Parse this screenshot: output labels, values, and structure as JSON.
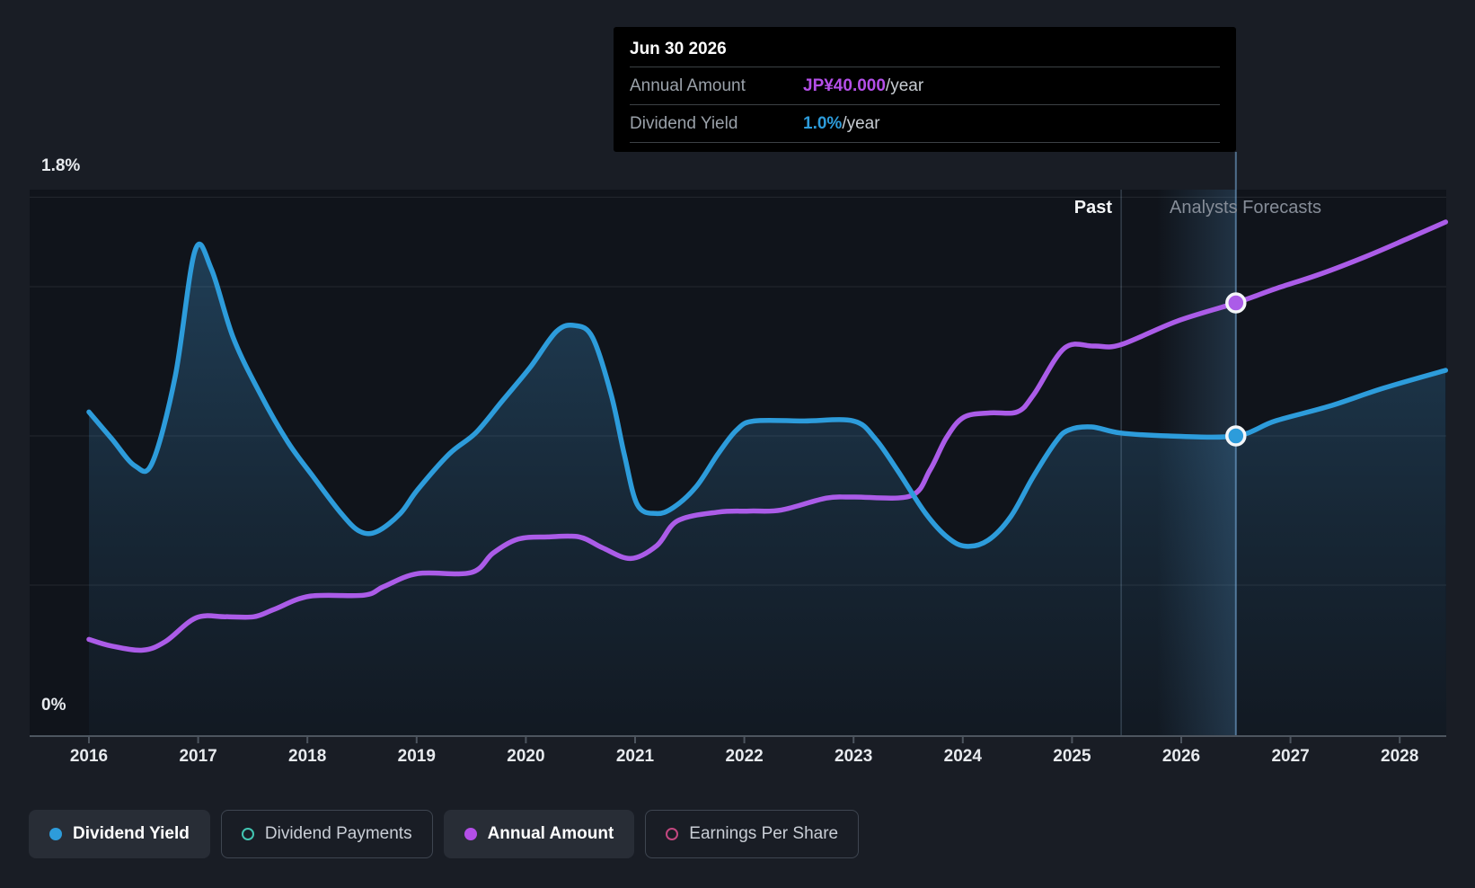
{
  "tooltip": {
    "date": "Jun 30 2026",
    "rows": [
      {
        "label": "Annual Amount",
        "value": "JP¥40.000",
        "suffix": "/year",
        "color": "#b44fe8"
      },
      {
        "label": "Dividend Yield",
        "value": "1.0%",
        "suffix": "/year",
        "color": "#2d9cdb"
      }
    ]
  },
  "regions": {
    "past_label": "Past",
    "forecast_label": "Analysts Forecasts"
  },
  "axis": {
    "y_top_label": "1.8%",
    "y_bottom_label": "0%",
    "x_ticks": [
      "2016",
      "2017",
      "2018",
      "2019",
      "2020",
      "2021",
      "2022",
      "2023",
      "2024",
      "2025",
      "2026",
      "2027",
      "2028"
    ]
  },
  "legend": [
    {
      "label": "Dividend Yield",
      "color": "#2d9cdb",
      "style": "filled",
      "active": true
    },
    {
      "label": "Dividend Payments",
      "color": "#42c5b2",
      "style": "ring",
      "active": false
    },
    {
      "label": "Annual Amount",
      "color": "#b44fe8",
      "style": "filled",
      "active": true
    },
    {
      "label": "Earnings Per Share",
      "color": "#c2477f",
      "style": "ring",
      "active": false
    }
  ],
  "colors": {
    "background": "#191d25",
    "plot_background": "#10141b",
    "gridline": "rgba(255,255,255,0.09)",
    "axis_line": "#4d555f",
    "yield_line": "#2d9cdb",
    "amount_line": "#ab5ce8",
    "area_fill_top": "rgba(64,150,210,0.32)",
    "area_fill_bottom": "rgba(64,150,210,0.04)",
    "hover_line": "rgba(125,178,226,0.55)",
    "divider_line": "rgba(150,182,212,0.25)",
    "band_highlight": "rgba(92,160,215,0.22)",
    "tooltip_background": "#000000"
  },
  "chart_data": {
    "type": "line",
    "title": "Dividend yield history and forecast",
    "grid_values_percent": [
      1.8,
      1.5,
      1.0,
      0.5
    ],
    "ylim_percent": [
      0,
      1.8
    ],
    "x_range": [
      2016,
      2028.42
    ],
    "past_until": 2025.45,
    "hover": {
      "x": 2026.5,
      "date": "Jun 30 2026",
      "yield_percent": 1.0,
      "amount_jpy": 40.0
    },
    "series": [
      {
        "name": "Dividend Yield",
        "unit": "%",
        "color": "#2d9cdb",
        "points": [
          [
            2016.0,
            1.08
          ],
          [
            2016.21,
            0.99
          ],
          [
            2016.42,
            0.9
          ],
          [
            2016.58,
            0.91
          ],
          [
            2016.79,
            1.2
          ],
          [
            2016.97,
            1.62
          ],
          [
            2017.12,
            1.56
          ],
          [
            2017.32,
            1.33
          ],
          [
            2017.57,
            1.14
          ],
          [
            2017.82,
            0.98
          ],
          [
            2018.06,
            0.86
          ],
          [
            2018.31,
            0.74
          ],
          [
            2018.48,
            0.68
          ],
          [
            2018.64,
            0.68
          ],
          [
            2018.85,
            0.74
          ],
          [
            2019.01,
            0.82
          ],
          [
            2019.3,
            0.94
          ],
          [
            2019.54,
            1.01
          ],
          [
            2019.79,
            1.12
          ],
          [
            2020.04,
            1.23
          ],
          [
            2020.28,
            1.35
          ],
          [
            2020.45,
            1.37
          ],
          [
            2020.61,
            1.33
          ],
          [
            2020.78,
            1.14
          ],
          [
            2020.9,
            0.94
          ],
          [
            2021.02,
            0.77
          ],
          [
            2021.19,
            0.74
          ],
          [
            2021.35,
            0.76
          ],
          [
            2021.56,
            0.83
          ],
          [
            2021.76,
            0.94
          ],
          [
            2021.93,
            1.02
          ],
          [
            2022.09,
            1.05
          ],
          [
            2022.55,
            1.05
          ],
          [
            2023.0,
            1.05
          ],
          [
            2023.2,
            0.99
          ],
          [
            2023.41,
            0.88
          ],
          [
            2023.66,
            0.74
          ],
          [
            2023.86,
            0.66
          ],
          [
            2024.03,
            0.63
          ],
          [
            2024.23,
            0.65
          ],
          [
            2024.44,
            0.73
          ],
          [
            2024.64,
            0.86
          ],
          [
            2024.85,
            0.98
          ],
          [
            2024.97,
            1.02
          ],
          [
            2025.18,
            1.03
          ],
          [
            2025.44,
            1.01
          ],
          [
            2025.88,
            1.0
          ],
          [
            2026.5,
            1.0
          ],
          [
            2026.86,
            1.05
          ],
          [
            2027.36,
            1.1
          ],
          [
            2027.85,
            1.16
          ],
          [
            2028.42,
            1.22
          ]
        ]
      },
      {
        "name": "Annual Amount",
        "unit": "JP¥/year",
        "color": "#ab5ce8",
        "points": [
          [
            2016.0,
            8.8
          ],
          [
            2016.2,
            8.2
          ],
          [
            2016.49,
            7.8
          ],
          [
            2016.7,
            8.6
          ],
          [
            2016.98,
            10.8
          ],
          [
            2017.25,
            10.9
          ],
          [
            2017.51,
            10.9
          ],
          [
            2017.7,
            11.6
          ],
          [
            2018.02,
            12.8
          ],
          [
            2018.52,
            12.9
          ],
          [
            2018.7,
            13.7
          ],
          [
            2019.01,
            14.9
          ],
          [
            2019.5,
            15.0
          ],
          [
            2019.7,
            16.8
          ],
          [
            2019.93,
            18.1
          ],
          [
            2020.2,
            18.3
          ],
          [
            2020.49,
            18.3
          ],
          [
            2020.7,
            17.3
          ],
          [
            2020.96,
            16.3
          ],
          [
            2021.2,
            17.5
          ],
          [
            2021.39,
            19.8
          ],
          [
            2021.76,
            20.6
          ],
          [
            2022.05,
            20.7
          ],
          [
            2022.34,
            20.8
          ],
          [
            2022.75,
            21.9
          ],
          [
            2023.0,
            22.0
          ],
          [
            2023.52,
            22.1
          ],
          [
            2023.7,
            24.5
          ],
          [
            2023.85,
            27.5
          ],
          [
            2024.01,
            29.4
          ],
          [
            2024.25,
            29.8
          ],
          [
            2024.5,
            29.9
          ],
          [
            2024.65,
            31.5
          ],
          [
            2024.93,
            35.8
          ],
          [
            2025.2,
            36.0
          ],
          [
            2025.44,
            36.1
          ],
          [
            2025.96,
            38.3
          ],
          [
            2026.5,
            40.0
          ],
          [
            2026.86,
            41.3
          ],
          [
            2027.28,
            42.7
          ],
          [
            2027.69,
            44.3
          ],
          [
            2028.06,
            45.9
          ],
          [
            2028.42,
            47.5
          ]
        ]
      }
    ]
  }
}
